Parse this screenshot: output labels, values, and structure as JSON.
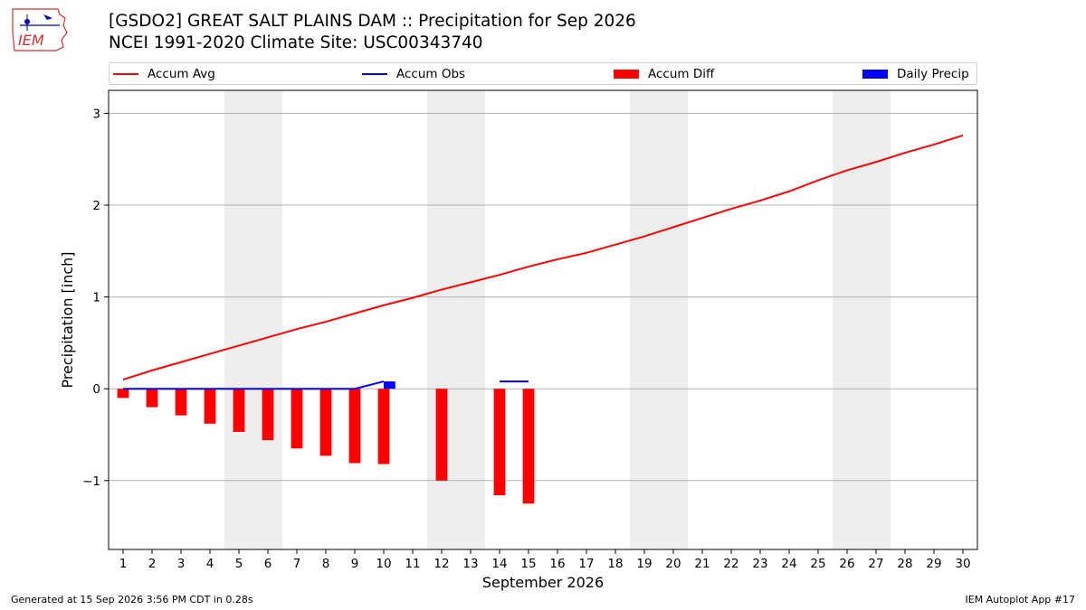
{
  "header": {
    "title_line1": "[GSDO2] GREAT SALT PLAINS DAM :: Precipitation for Sep 2026",
    "title_line2": "NCEI 1991-2020 Climate Site: USC00343740",
    "logo_text": "IEM"
  },
  "legend": {
    "accum_avg": "Accum Avg",
    "accum_obs": "Accum Obs",
    "accum_diff": "Accum Diff",
    "daily_precip": "Daily Precip"
  },
  "footer": {
    "generated": "Generated at 15 Sep 2026 3:56 PM CDT in 0.28s",
    "app": "IEM Autoplot App #17"
  },
  "colors": {
    "avg": "#ff0000",
    "obs": "#0000ff",
    "diff": "#ff0000",
    "daily": "#0000ff",
    "weekend_band": "#eeeeee",
    "grid": "#b0b0b0"
  },
  "chart_data": {
    "type": "line",
    "xlabel": "September 2026",
    "ylabel": "Precipitation [inch]",
    "xlim": [
      0.5,
      30.5
    ],
    "ylim": [
      -1.75,
      3.25
    ],
    "yticks": [
      -1,
      0,
      1,
      2,
      3
    ],
    "ytick_labels": [
      "−1",
      "0",
      "1",
      "2",
      "3"
    ],
    "xticks": [
      1,
      2,
      3,
      4,
      5,
      6,
      7,
      8,
      9,
      10,
      11,
      12,
      13,
      14,
      15,
      16,
      17,
      18,
      19,
      20,
      21,
      22,
      23,
      24,
      25,
      26,
      27,
      28,
      29,
      30
    ],
    "grid": "horizontal",
    "legend_position": "top",
    "weekend_bands": [
      [
        4.5,
        6.5
      ],
      [
        11.5,
        13.5
      ],
      [
        18.5,
        20.5
      ],
      [
        25.5,
        27.5
      ]
    ],
    "series": [
      {
        "name": "Accum Avg",
        "kind": "line",
        "x": [
          1,
          2,
          3,
          4,
          5,
          6,
          7,
          8,
          9,
          10,
          11,
          12,
          13,
          14,
          15,
          16,
          17,
          18,
          19,
          20,
          21,
          22,
          23,
          24,
          25,
          26,
          27,
          28,
          29,
          30
        ],
        "values": [
          0.1,
          0.2,
          0.29,
          0.38,
          0.47,
          0.56,
          0.65,
          0.73,
          0.82,
          0.91,
          0.99,
          1.08,
          1.16,
          1.24,
          1.33,
          1.41,
          1.48,
          1.57,
          1.66,
          1.76,
          1.86,
          1.96,
          2.05,
          2.15,
          2.27,
          2.38,
          2.47,
          2.57,
          2.66,
          2.76
        ]
      },
      {
        "name": "Accum Obs",
        "kind": "line",
        "x": [
          1,
          2,
          3,
          4,
          5,
          6,
          7,
          8,
          9,
          10
        ],
        "values": [
          0,
          0,
          0,
          0,
          0,
          0,
          0,
          0,
          0,
          0.08
        ],
        "extra_segments": [
          {
            "x": [
              14,
              15
            ],
            "values": [
              0.08,
              0.08
            ]
          }
        ]
      },
      {
        "name": "Accum Diff",
        "kind": "bar",
        "x": [
          1,
          2,
          3,
          4,
          5,
          6,
          7,
          8,
          9,
          10,
          12,
          14,
          15
        ],
        "values": [
          -0.1,
          -0.2,
          -0.29,
          -0.38,
          -0.47,
          -0.56,
          -0.65,
          -0.73,
          -0.81,
          -0.82,
          -1.0,
          -1.16,
          -1.25
        ]
      },
      {
        "name": "Daily Precip",
        "kind": "bar",
        "x": [
          10
        ],
        "values": [
          0.08
        ]
      }
    ]
  }
}
